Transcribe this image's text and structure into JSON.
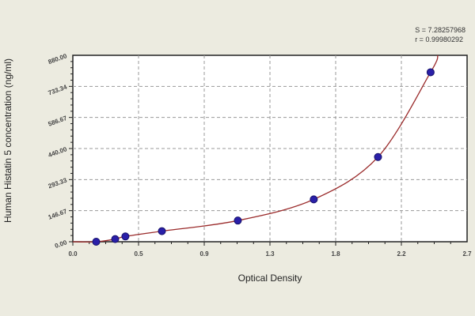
{
  "chart_data": {
    "type": "scatter",
    "title": "",
    "xlabel": "Optical Density",
    "ylabel": "Human Histatin 5 concentration (ng/ml)",
    "xlim": [
      0,
      2.7
    ],
    "ylim": [
      0,
      880
    ],
    "x_tick_labels": [
      "0.0",
      "0.5",
      "0.9",
      "1.3",
      "1.8",
      "2.2",
      "2.7"
    ],
    "y_tick_labels": [
      "0.00",
      "146.67",
      "293.33",
      "440.00",
      "586.67",
      "733.34",
      "880.00"
    ],
    "grid": true,
    "fit_stats": [
      "S = 7.28257968",
      "r = 0.99980292"
    ],
    "series": [
      {
        "x": [
          0.16,
          0.29,
          0.36,
          0.61,
          1.13,
          1.65,
          2.09,
          2.45
        ],
        "y": [
          0,
          12.5,
          25,
          50,
          100,
          200,
          400,
          800
        ]
      }
    ],
    "colors": {
      "points": "#2a1fa8",
      "curve": "#9a2a2a",
      "plot_bg": "#ffffff"
    }
  }
}
